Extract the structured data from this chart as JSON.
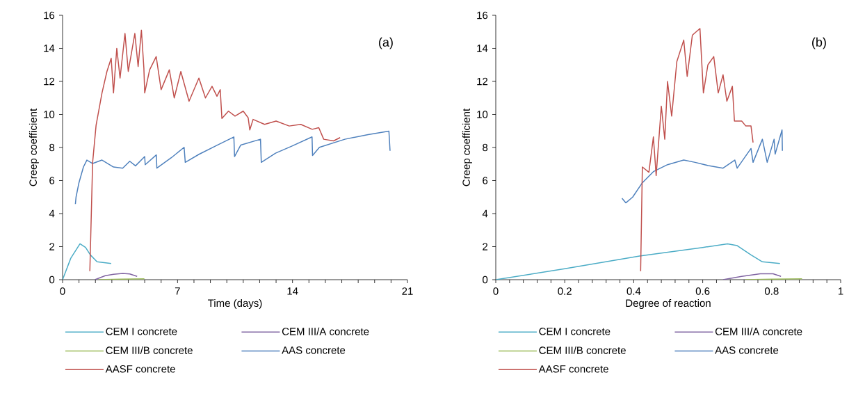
{
  "chart_data": [
    {
      "type": "line",
      "xlabel": "Time (days)",
      "ylabel": "Creep coefficient",
      "annotations": [
        "(a)"
      ],
      "legend": "bottom",
      "xlim": [
        0,
        21
      ],
      "ylim": [
        0,
        16
      ],
      "yticks": [
        0,
        2,
        4,
        6,
        8,
        10,
        12,
        14,
        16
      ],
      "xticks": [
        0,
        {
          "value": 1,
          "label": null
        },
        {
          "value": 2,
          "label": null
        },
        {
          "value": 3,
          "label": null
        },
        {
          "value": 4,
          "label": null
        },
        {
          "value": 5,
          "label": null
        },
        {
          "value": 6,
          "label": null
        },
        7,
        {
          "value": 8,
          "label": null
        },
        {
          "value": 9,
          "label": null
        },
        {
          "value": 10,
          "label": null
        },
        {
          "value": 11,
          "label": null
        },
        {
          "value": 12,
          "label": null
        },
        {
          "value": 13,
          "label": null
        },
        14,
        {
          "value": 15,
          "label": null
        },
        {
          "value": 16,
          "label": null
        },
        {
          "value": 17,
          "label": null
        },
        {
          "value": 18,
          "label": null
        },
        {
          "value": 19,
          "label": null
        },
        {
          "value": 20,
          "label": null
        },
        21
      ],
      "series": [
        {
          "name": "CEM I concrete",
          "color": "#4bacc6",
          "x": [
            0,
            0.5,
            1.06,
            1.4,
            1.69,
            2.1,
            2.96
          ],
          "values": [
            0,
            1.3,
            2.17,
            1.95,
            1.5,
            1.08,
            0.98
          ]
        },
        {
          "name": "CEM III/A concrete",
          "color": "#8064a2",
          "x": [
            1.97,
            2.6,
            3.1,
            3.66,
            4.09,
            4.54
          ],
          "values": [
            0,
            0.24,
            0.33,
            0.38,
            0.35,
            0.2
          ]
        },
        {
          "name": "CEM III/B concrete",
          "color": "#9bbb59",
          "x": [
            2.18,
            3.5,
            4.98
          ],
          "values": [
            0,
            0.03,
            0.05
          ]
        },
        {
          "name": "AAS concrete",
          "color": "#4f81bd",
          "x": [
            0.78,
            0.82,
            0.99,
            1.27,
            1.48,
            1.83,
            2.4,
            3.1,
            3.66,
            4.09,
            4.44,
            5.0,
            5.03,
            5.71,
            5.74,
            6.62,
            7.4,
            7.47,
            8.31,
            9.44,
            10.43,
            10.47,
            10.85,
            12.05,
            12.1,
            12.97,
            13.95,
            15.19,
            15.22,
            15.64,
            17.19,
            18.6,
            19.87,
            19.94
          ],
          "values": [
            4.58,
            5.0,
            5.84,
            6.82,
            7.24,
            7.03,
            7.24,
            6.82,
            6.75,
            7.17,
            6.89,
            7.45,
            6.96,
            7.55,
            6.75,
            7.38,
            8.01,
            7.1,
            7.59,
            8.15,
            8.64,
            7.45,
            8.15,
            8.5,
            7.1,
            7.66,
            8.08,
            8.64,
            7.52,
            8.01,
            8.5,
            8.78,
            8.99,
            7.8
          ]
        },
        {
          "name": "AASF concrete",
          "color": "#c0504d",
          "x": [
            1.66,
            1.83,
            2.04,
            2.4,
            2.7,
            2.96,
            3.1,
            3.3,
            3.5,
            3.8,
            4.0,
            4.4,
            4.6,
            4.8,
            4.95,
            5.0,
            5.3,
            5.7,
            6.0,
            6.5,
            6.8,
            7.2,
            7.7,
            8.3,
            8.7,
            9.1,
            9.4,
            9.6,
            9.7,
            10.1,
            10.5,
            11.0,
            11.3,
            11.4,
            11.6,
            12.3,
            13.0,
            13.8,
            14.5,
            15.2,
            15.6,
            15.9,
            16.5,
            16.9
          ],
          "values": [
            0.52,
            7.1,
            9.34,
            11.3,
            12.6,
            13.4,
            11.3,
            14.0,
            12.2,
            14.9,
            12.6,
            14.9,
            12.9,
            15.1,
            12.8,
            11.3,
            12.7,
            13.5,
            11.5,
            12.7,
            11.0,
            12.6,
            10.8,
            12.2,
            11.0,
            11.7,
            11.1,
            11.5,
            9.76,
            10.2,
            9.9,
            10.2,
            9.8,
            9.06,
            9.7,
            9.4,
            9.6,
            9.3,
            9.4,
            9.1,
            9.2,
            8.5,
            8.4,
            8.6
          ]
        }
      ]
    },
    {
      "type": "line",
      "xlabel": "Degree of reaction",
      "ylabel": "Creep coefficient",
      "annotations": [
        "(b)"
      ],
      "legend": "bottom",
      "xlim": [
        0,
        1
      ],
      "ylim": [
        0,
        16
      ],
      "yticks": [
        0,
        2,
        4,
        6,
        8,
        10,
        12,
        14,
        16
      ],
      "xticks": [
        0,
        {
          "value": 0.04,
          "label": null
        },
        {
          "value": 0.08,
          "label": null
        },
        {
          "value": 0.12,
          "label": null
        },
        {
          "value": 0.16,
          "label": null
        },
        0.2,
        {
          "value": 0.24,
          "label": null
        },
        {
          "value": 0.28,
          "label": null
        },
        {
          "value": 0.32,
          "label": null
        },
        {
          "value": 0.36,
          "label": null
        },
        0.4,
        {
          "value": 0.44,
          "label": null
        },
        {
          "value": 0.48,
          "label": null
        },
        {
          "value": 0.52,
          "label": null
        },
        {
          "value": 0.56,
          "label": null
        },
        0.6,
        {
          "value": 0.64,
          "label": null
        },
        {
          "value": 0.68,
          "label": null
        },
        {
          "value": 0.72,
          "label": null
        },
        {
          "value": 0.76,
          "label": null
        },
        0.8,
        {
          "value": 0.84,
          "label": null
        },
        {
          "value": 0.88,
          "label": null
        },
        {
          "value": 0.92,
          "label": null
        },
        {
          "value": 0.96,
          "label": null
        },
        1
      ],
      "series": [
        {
          "name": "CEM I concrete",
          "color": "#4bacc6",
          "x": [
            0,
            0.2,
            0.417,
            0.6,
            0.672,
            0.7,
            0.74,
            0.773,
            0.824
          ],
          "values": [
            0,
            0.66,
            1.43,
            1.95,
            2.17,
            2.06,
            1.5,
            1.08,
            0.98
          ]
        },
        {
          "name": "CEM III/A concrete",
          "color": "#8064a2",
          "x": [
            0.659,
            0.713,
            0.767,
            0.804,
            0.827
          ],
          "values": [
            0,
            0.2,
            0.36,
            0.36,
            0.2
          ]
        },
        {
          "name": "CEM III/B concrete",
          "color": "#9bbb59",
          "x": [
            0.723,
            0.8,
            0.888
          ],
          "values": [
            0,
            0.03,
            0.05
          ]
        },
        {
          "name": "AAS concrete",
          "color": "#4f81bd",
          "x": [
            0.366,
            0.377,
            0.397,
            0.424,
            0.457,
            0.498,
            0.545,
            0.578,
            0.619,
            0.659,
            0.693,
            0.7,
            0.74,
            0.746,
            0.773,
            0.787,
            0.807,
            0.81,
            0.83,
            0.831
          ],
          "values": [
            4.93,
            4.65,
            5.0,
            5.84,
            6.54,
            6.96,
            7.24,
            7.1,
            6.89,
            6.75,
            7.24,
            6.75,
            7.94,
            7.1,
            8.5,
            7.1,
            8.5,
            7.6,
            9.06,
            7.8
          ]
        },
        {
          "name": "AASF concrete",
          "color": "#c0504d",
          "x": [
            0.42,
            0.425,
            0.444,
            0.457,
            0.465,
            0.48,
            0.49,
            0.498,
            0.51,
            0.525,
            0.545,
            0.555,
            0.57,
            0.592,
            0.602,
            0.615,
            0.632,
            0.645,
            0.659,
            0.67,
            0.686,
            0.692,
            0.713,
            0.725,
            0.74,
            0.746
          ],
          "values": [
            0.52,
            6.82,
            6.5,
            8.64,
            6.3,
            10.5,
            8.5,
            12.0,
            9.9,
            13.2,
            14.5,
            12.3,
            14.8,
            15.2,
            11.3,
            13.0,
            13.5,
            11.3,
            12.4,
            10.8,
            11.7,
            9.6,
            9.6,
            9.3,
            9.3,
            8.3
          ]
        }
      ]
    }
  ]
}
